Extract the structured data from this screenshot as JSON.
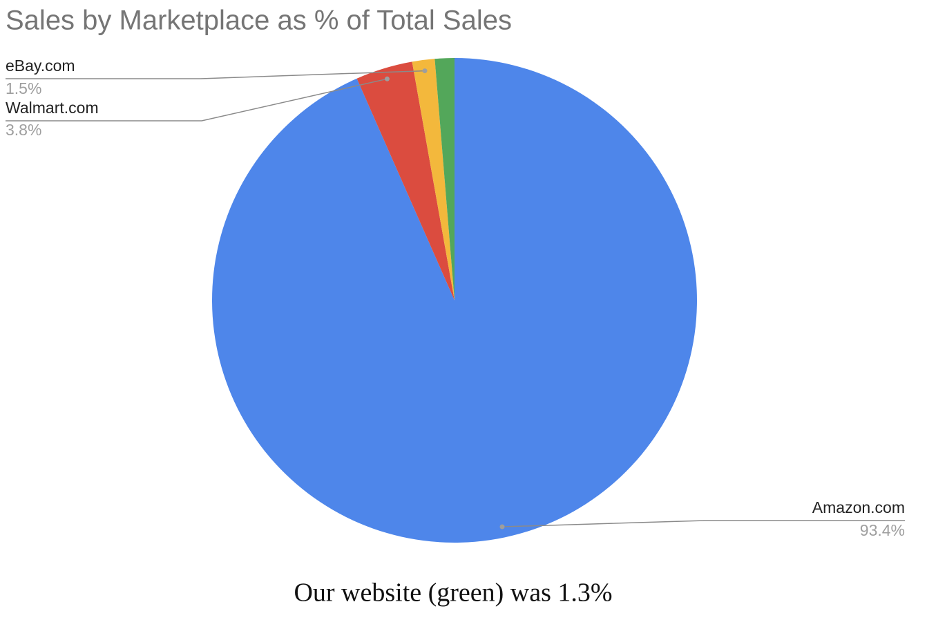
{
  "chart_data": {
    "type": "pie",
    "title": "Sales by Marketplace as % of Total Sales",
    "categories": [
      "Amazon.com",
      "Walmart.com",
      "eBay.com",
      null
    ],
    "values": [
      93.4,
      3.8,
      1.5,
      1.3
    ],
    "value_labels": [
      "93.4%",
      "3.8%",
      "1.5%",
      null
    ],
    "colors": [
      "#4e86ea",
      "#db4c3f",
      "#f3b83c",
      "#53a75a"
    ],
    "caption": "Our website (green) was 1.3%"
  }
}
